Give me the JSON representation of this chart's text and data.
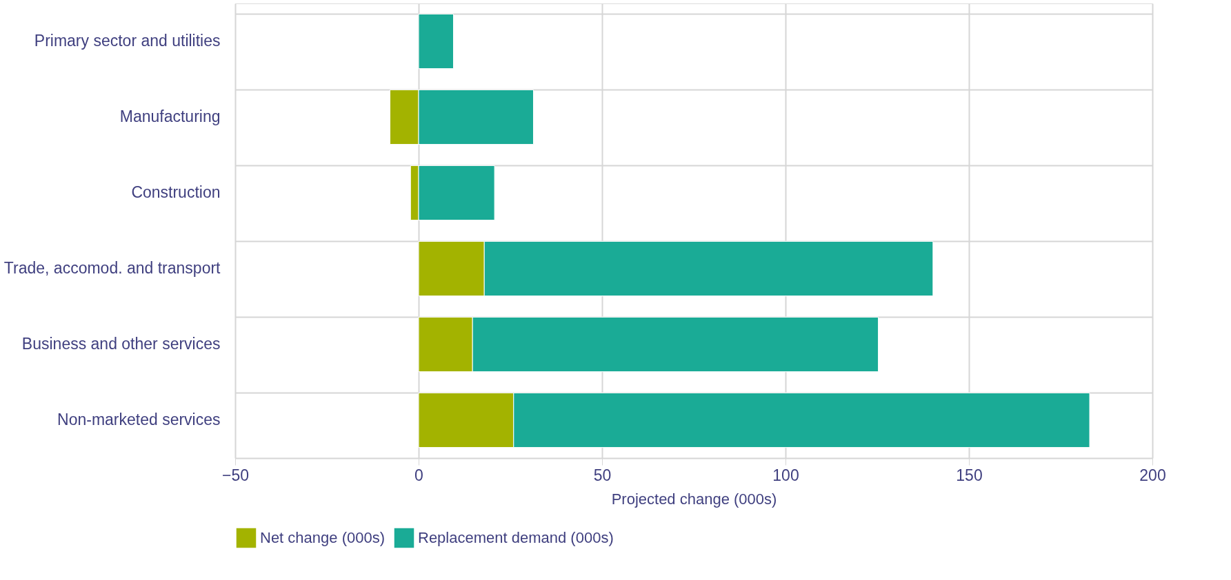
{
  "chart_data": {
    "type": "bar",
    "orientation": "horizontal",
    "stacked": true,
    "categories": [
      "Primary sector and utilities",
      "Manufacturing",
      "Construction",
      "Trade, accomod. and transport",
      "Business and other services",
      "Non-marketed services"
    ],
    "series": [
      {
        "name": "Net change (000s)",
        "color": "#a3b300",
        "values": [
          null,
          -7.8,
          -2.2,
          17.9,
          14.7,
          25.9
        ]
      },
      {
        "name": "Replacement demand (000s)",
        "color": "#1aab96",
        "values": [
          9.5,
          31.3,
          20.7,
          122.3,
          110.6,
          157
        ]
      }
    ],
    "xlabel": "Projected change (000s)",
    "xlim": [
      -50,
      200
    ],
    "xticks": [
      -50,
      0,
      50,
      100,
      150,
      200
    ],
    "grid": true,
    "legend": "bottom"
  }
}
